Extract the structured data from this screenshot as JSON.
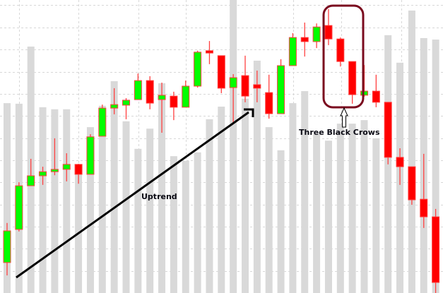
{
  "chart_data": {
    "type": "candlestick",
    "title": "",
    "xlabel": "",
    "ylabel": "",
    "ylim": [
      0,
      100
    ],
    "grid": true,
    "colors": {
      "up": "#00ff00",
      "down": "#ff0000",
      "candle_border": "#ff4040",
      "volume": "#d9d9d9",
      "grid": "#d8d8d8",
      "highlight_box": "#7a0a1e",
      "trend_arrow": "#000000"
    },
    "candles": [
      {
        "open": 10.4,
        "high": 23.9,
        "low": 6.0,
        "close": 21.2
      },
      {
        "open": 21.7,
        "high": 37.8,
        "low": 21.0,
        "close": 36.6
      },
      {
        "open": 36.6,
        "high": 45.8,
        "low": 36.6,
        "close": 40.0
      },
      {
        "open": 40.0,
        "high": 43.1,
        "low": 36.9,
        "close": 41.4
      },
      {
        "open": 41.4,
        "high": 52.8,
        "low": 40.2,
        "close": 42.2
      },
      {
        "open": 42.2,
        "high": 47.7,
        "low": 38.1,
        "close": 43.9
      },
      {
        "open": 43.9,
        "high": 44.1,
        "low": 37.3,
        "close": 40.5
      },
      {
        "open": 40.5,
        "high": 54.2,
        "low": 40.5,
        "close": 53.3
      },
      {
        "open": 53.5,
        "high": 64.3,
        "low": 53.5,
        "close": 63.1
      },
      {
        "open": 63.1,
        "high": 69.9,
        "low": 61.0,
        "close": 64.3
      },
      {
        "open": 64.1,
        "high": 66.5,
        "low": 59.3,
        "close": 65.8
      },
      {
        "open": 66.0,
        "high": 74.9,
        "low": 66.0,
        "close": 72.5
      },
      {
        "open": 72.5,
        "high": 74.0,
        "low": 62.7,
        "close": 64.8
      },
      {
        "open": 66.0,
        "high": 71.8,
        "low": 54.7,
        "close": 67.5
      },
      {
        "open": 67.2,
        "high": 68.7,
        "low": 59.0,
        "close": 63.4
      },
      {
        "open": 63.4,
        "high": 72.5,
        "low": 63.4,
        "close": 70.6
      },
      {
        "open": 70.6,
        "high": 82.7,
        "low": 70.1,
        "close": 82.2
      },
      {
        "open": 82.7,
        "high": 86.0,
        "low": 78.1,
        "close": 81.9
      },
      {
        "open": 81.0,
        "high": 81.0,
        "low": 68.2,
        "close": 69.9
      },
      {
        "open": 70.1,
        "high": 74.7,
        "low": 57.6,
        "close": 73.5
      },
      {
        "open": 74.2,
        "high": 81.0,
        "low": 65.1,
        "close": 67.2
      },
      {
        "open": 71.1,
        "high": 75.9,
        "low": 65.1,
        "close": 69.9
      },
      {
        "open": 68.4,
        "high": 74.5,
        "low": 59.5,
        "close": 61.2
      },
      {
        "open": 61.2,
        "high": 79.8,
        "low": 61.2,
        "close": 77.6
      },
      {
        "open": 77.6,
        "high": 88.7,
        "low": 77.6,
        "close": 87.2
      },
      {
        "open": 87.2,
        "high": 92.3,
        "low": 80.7,
        "close": 85.8
      },
      {
        "open": 85.8,
        "high": 92.0,
        "low": 83.6,
        "close": 90.8
      },
      {
        "open": 91.3,
        "high": 96.9,
        "low": 84.6,
        "close": 86.7
      },
      {
        "open": 86.7,
        "high": 87.2,
        "low": 77.3,
        "close": 79.0
      },
      {
        "open": 79.0,
        "high": 79.0,
        "low": 64.6,
        "close": 67.7
      },
      {
        "open": 67.5,
        "high": 77.8,
        "low": 67.0,
        "close": 68.9
      },
      {
        "open": 68.9,
        "high": 74.5,
        "low": 63.4,
        "close": 65.1
      },
      {
        "open": 65.1,
        "high": 65.1,
        "low": 43.9,
        "close": 46.3
      },
      {
        "open": 46.3,
        "high": 49.4,
        "low": 36.9,
        "close": 43.1
      },
      {
        "open": 43.1,
        "high": 43.1,
        "low": 30.1,
        "close": 31.8
      },
      {
        "open": 32.0,
        "high": 47.5,
        "low": 22.2,
        "close": 26.0
      },
      {
        "open": 26.0,
        "high": 28.7,
        "low": 0.0,
        "close": 3.6
      }
    ],
    "volume": [
      64.8,
      64.6,
      84.1,
      63.4,
      62.7,
      62.7,
      42.2,
      56.6,
      63.9,
      72.3,
      58.6,
      49.2,
      56.1,
      71.6,
      46.7,
      45.1,
      48.0,
      59.3,
      63.6,
      100,
      66.3,
      79.3,
      56.6,
      48.7,
      64.8,
      68.9,
      54.2,
      52.0,
      57.8,
      57.8,
      59.0,
      52.8,
      88.0,
      78.6,
      96.4,
      87.0,
      86.5
    ],
    "annotations": {
      "uptrend_label": "Uptrend",
      "pattern_label": "Three Black Crows",
      "pattern_candles": [
        28,
        29,
        30
      ]
    }
  }
}
